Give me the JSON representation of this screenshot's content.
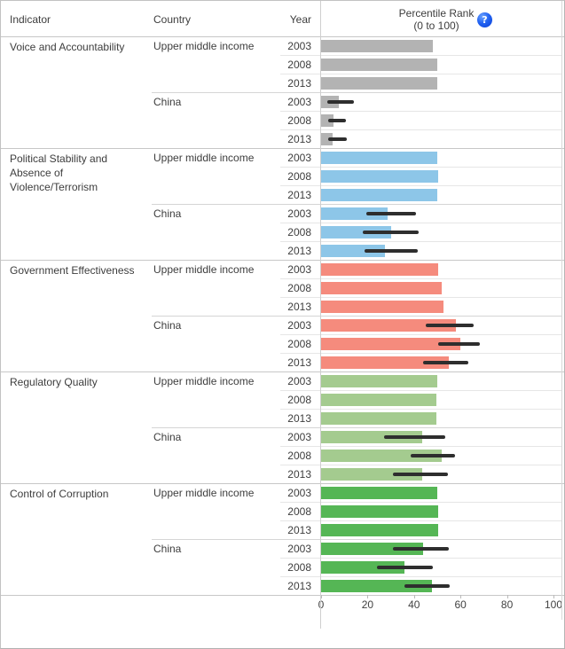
{
  "header": {
    "indicator": "Indicator",
    "country": "Country",
    "year": "Year",
    "value_title_line1": "Percentile Rank",
    "value_title_line2": "(0 to 100)",
    "help_glyph": "?"
  },
  "colors": {
    "voice_and_accountability": "#b3b3b3",
    "political_stability": "#8dc6e8",
    "government_effectiveness": "#f58b7d",
    "regulatory_quality": "#a4cb8f",
    "control_of_corruption": "#55b655",
    "confidence_interval": "#2e2e2e",
    "help_icon_blue": "#1a52e8"
  },
  "chart_data": {
    "type": "bar",
    "orientation": "horizontal",
    "title": "Percentile Rank (0 to 100)",
    "xlim": [
      0,
      100
    ],
    "x_ticks": [
      0,
      20,
      40,
      60,
      80,
      100
    ],
    "grid": "row-separators",
    "legend_position": "none",
    "groups": [
      {
        "indicator": "Voice and Accountability",
        "color": "#b3b3b3",
        "countries": [
          {
            "country": "Upper middle income",
            "bars": [
              {
                "year": "2003",
                "value": 48,
                "ci_low": null,
                "ci_high": null
              },
              {
                "year": "2008",
                "value": 50,
                "ci_low": null,
                "ci_high": null
              },
              {
                "year": "2013",
                "value": 50,
                "ci_low": null,
                "ci_high": null
              }
            ]
          },
          {
            "country": "China",
            "bars": [
              {
                "year": "2003",
                "value": 7.5,
                "ci_low": 2.5,
                "ci_high": 14
              },
              {
                "year": "2008",
                "value": 5.5,
                "ci_low": 3,
                "ci_high": 10.5
              },
              {
                "year": "2013",
                "value": 5,
                "ci_low": 3,
                "ci_high": 11
              }
            ]
          }
        ]
      },
      {
        "indicator": "Political Stability and Absence of Violence/Terrorism",
        "color": "#8dc6e8",
        "countries": [
          {
            "country": "Upper middle income",
            "bars": [
              {
                "year": "2003",
                "value": 50,
                "ci_low": null,
                "ci_high": null
              },
              {
                "year": "2008",
                "value": 50.5,
                "ci_low": null,
                "ci_high": null
              },
              {
                "year": "2013",
                "value": 50,
                "ci_low": null,
                "ci_high": null
              }
            ]
          },
          {
            "country": "China",
            "bars": [
              {
                "year": "2003",
                "value": 28.5,
                "ci_low": 19.5,
                "ci_high": 41
              },
              {
                "year": "2008",
                "value": 30,
                "ci_low": 18,
                "ci_high": 42
              },
              {
                "year": "2013",
                "value": 27.5,
                "ci_low": 18.5,
                "ci_high": 41.5
              }
            ]
          }
        ]
      },
      {
        "indicator": "Government Effectiveness",
        "color": "#f58b7d",
        "countries": [
          {
            "country": "Upper middle income",
            "bars": [
              {
                "year": "2003",
                "value": 50.5,
                "ci_low": null,
                "ci_high": null
              },
              {
                "year": "2008",
                "value": 52,
                "ci_low": null,
                "ci_high": null
              },
              {
                "year": "2013",
                "value": 52.5,
                "ci_low": null,
                "ci_high": null
              }
            ]
          },
          {
            "country": "China",
            "bars": [
              {
                "year": "2003",
                "value": 58,
                "ci_low": 45,
                "ci_high": 65.5
              },
              {
                "year": "2008",
                "value": 60,
                "ci_low": 50.5,
                "ci_high": 68.5
              },
              {
                "year": "2013",
                "value": 55,
                "ci_low": 44,
                "ci_high": 63.5
              }
            ]
          }
        ]
      },
      {
        "indicator": "Regulatory Quality",
        "color": "#a4cb8f",
        "countries": [
          {
            "country": "Upper middle income",
            "bars": [
              {
                "year": "2003",
                "value": 50,
                "ci_low": null,
                "ci_high": null
              },
              {
                "year": "2008",
                "value": 49.5,
                "ci_low": null,
                "ci_high": null
              },
              {
                "year": "2013",
                "value": 49.5,
                "ci_low": null,
                "ci_high": null
              }
            ]
          },
          {
            "country": "China",
            "bars": [
              {
                "year": "2003",
                "value": 43.5,
                "ci_low": 27,
                "ci_high": 53.5
              },
              {
                "year": "2008",
                "value": 52,
                "ci_low": 38.5,
                "ci_high": 57.5
              },
              {
                "year": "2013",
                "value": 43.5,
                "ci_low": 31,
                "ci_high": 54.5
              }
            ]
          }
        ]
      },
      {
        "indicator": "Control of Corruption",
        "color": "#55b655",
        "countries": [
          {
            "country": "Upper middle income",
            "bars": [
              {
                "year": "2003",
                "value": 50,
                "ci_low": null,
                "ci_high": null
              },
              {
                "year": "2008",
                "value": 50.5,
                "ci_low": null,
                "ci_high": null
              },
              {
                "year": "2013",
                "value": 50.5,
                "ci_low": null,
                "ci_high": null
              }
            ]
          },
          {
            "country": "China",
            "bars": [
              {
                "year": "2003",
                "value": 44,
                "ci_low": 31,
                "ci_high": 55
              },
              {
                "year": "2008",
                "value": 36,
                "ci_low": 24,
                "ci_high": 48
              },
              {
                "year": "2013",
                "value": 47.5,
                "ci_low": 36,
                "ci_high": 55.5
              }
            ]
          }
        ]
      }
    ]
  }
}
